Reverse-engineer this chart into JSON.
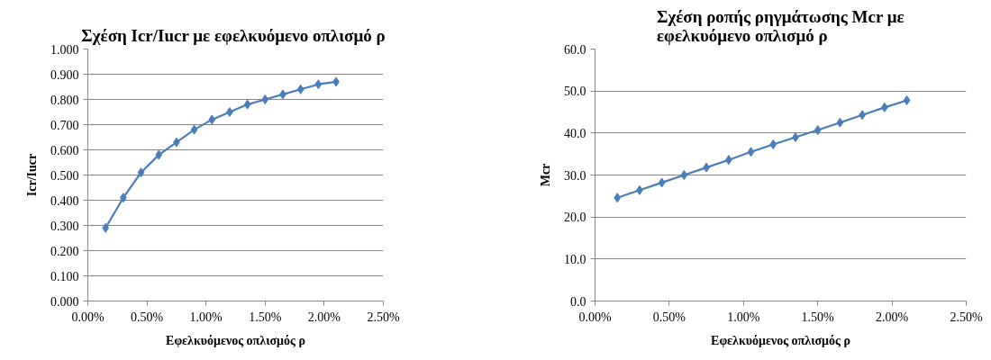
{
  "chart_data": [
    {
      "type": "line",
      "title": "Σχέση Icr/Iucr  με εφελκυόμενο οπλισμό ρ",
      "xlabel": "Εφελκυόμενος οπλισμός ρ",
      "ylabel": "Icr/Iucr",
      "x": [
        0.15,
        0.3,
        0.45,
        0.6,
        0.75,
        0.9,
        1.05,
        1.2,
        1.35,
        1.5,
        1.65,
        1.8,
        1.95,
        2.1
      ],
      "series": [
        {
          "color": "#4a7ebb",
          "values": [
            0.29,
            0.41,
            0.51,
            0.58,
            0.63,
            0.68,
            0.72,
            0.75,
            0.78,
            0.8,
            0.82,
            0.84,
            0.86,
            0.87
          ]
        }
      ],
      "xlim": [
        0,
        2.5
      ],
      "xticks": [
        {
          "value": 0,
          "label": "0.00%"
        },
        {
          "value": 0.5,
          "label": "0.50%"
        },
        {
          "value": 1,
          "label": "1.00%"
        },
        {
          "value": 1.5,
          "label": "1.50%"
        },
        {
          "value": 2,
          "label": "2.00%"
        },
        {
          "value": 2.5,
          "label": "2.50%"
        }
      ],
      "ylim": [
        0,
        1
      ],
      "yticks": [
        {
          "value": 0,
          "label": "0.000"
        },
        {
          "value": 0.1,
          "label": "0.100"
        },
        {
          "value": 0.2,
          "label": "0.200"
        },
        {
          "value": 0.3,
          "label": "0.300"
        },
        {
          "value": 0.4,
          "label": "0.400"
        },
        {
          "value": 0.5,
          "label": "0.500"
        },
        {
          "value": 0.6,
          "label": "0.600"
        },
        {
          "value": 0.7,
          "label": "0.700"
        },
        {
          "value": 0.8,
          "label": "0.800"
        },
        {
          "value": 0.9,
          "label": "0.900"
        },
        {
          "value": 1,
          "label": "1.000"
        }
      ],
      "grid": "y",
      "marker": "diamond"
    },
    {
      "type": "line",
      "title": "Σχέση ροπής ρηγμάτωσης Mcr με εφελκυόμενο οπλισμό ρ",
      "xlabel": "Εφελκυόμενος οπλισμός ρ",
      "ylabel": "Mcr",
      "x": [
        0.15,
        0.3,
        0.45,
        0.6,
        0.75,
        0.9,
        1.05,
        1.2,
        1.35,
        1.5,
        1.65,
        1.8,
        1.95,
        2.1
      ],
      "series": [
        {
          "color": "#4a7ebb",
          "values": [
            24.6,
            26.4,
            28.2,
            30.0,
            31.8,
            33.6,
            35.5,
            37.3,
            39.0,
            40.7,
            42.5,
            44.3,
            46.1,
            47.8
          ]
        }
      ],
      "xlim": [
        0,
        2.5
      ],
      "xticks": [
        {
          "value": 0,
          "label": "0.00%"
        },
        {
          "value": 0.5,
          "label": "0.50%"
        },
        {
          "value": 1,
          "label": "1.00%"
        },
        {
          "value": 1.5,
          "label": "1.50%"
        },
        {
          "value": 2,
          "label": "2.00%"
        },
        {
          "value": 2.5,
          "label": "2.50%"
        }
      ],
      "ylim": [
        0,
        60
      ],
      "yticks": [
        {
          "value": 0,
          "label": "0.0"
        },
        {
          "value": 10,
          "label": "10.0"
        },
        {
          "value": 20,
          "label": "20.0"
        },
        {
          "value": 30,
          "label": "30.0"
        },
        {
          "value": 40,
          "label": "40.0"
        },
        {
          "value": 50,
          "label": "50.0"
        },
        {
          "value": 60,
          "label": "60.0"
        }
      ],
      "grid": "y",
      "marker": "diamond"
    }
  ]
}
